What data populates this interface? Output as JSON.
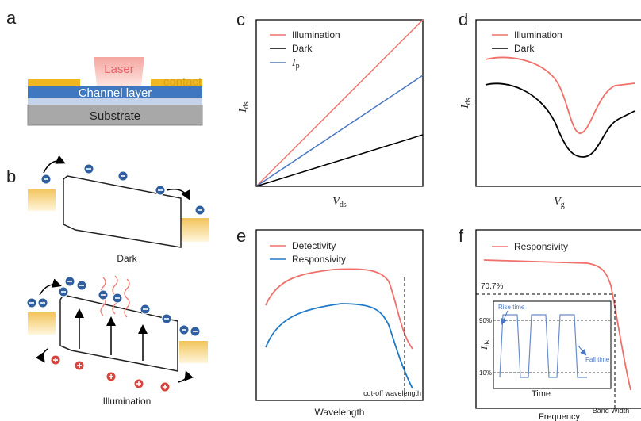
{
  "panels": {
    "a": {
      "label": "a",
      "laser": "Laser",
      "contact": "contact",
      "channel": "Channel layer",
      "substrate": "Substrate"
    },
    "b": {
      "label": "b",
      "dark": "Dark",
      "illumination": "Illumination"
    },
    "c": {
      "label": "c",
      "legend": [
        "Illumination",
        "Dark",
        {
          "symbol": "I",
          "subscript": "p"
        }
      ],
      "y_label": {
        "symbol": "I",
        "subscript": "ds"
      },
      "x_label": {
        "symbol": "V",
        "subscript": "ds"
      }
    },
    "d": {
      "label": "d",
      "legend": [
        "Illumination",
        "Dark"
      ],
      "y_label": {
        "symbol": "I",
        "subscript": "ds"
      },
      "x_label": {
        "symbol": "V",
        "subscript": "g"
      }
    },
    "e": {
      "label": "e",
      "legend": [
        "Detectivity",
        "Responsivity"
      ],
      "cutoff": "cut-off wavelength",
      "x_label": "Wavelength"
    },
    "f": {
      "label": "f",
      "legend": [
        "Responsivity"
      ],
      "level": "70.7%",
      "bandwidth": "Band Width",
      "x_label": "Frequency",
      "inset": {
        "rise": "Rise time",
        "fall": "Fall time",
        "high": "90%",
        "low": "10%",
        "x_label": "Time",
        "y_label": {
          "symbol": "I",
          "subscript": "ds"
        }
      }
    }
  }
}
